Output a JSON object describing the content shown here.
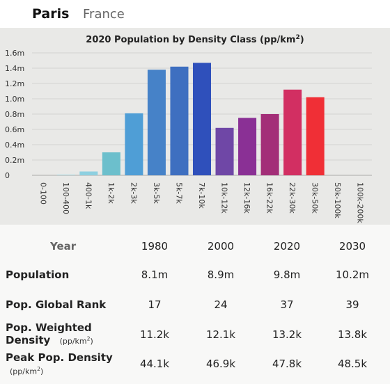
{
  "header": {
    "city": "Paris",
    "country": "France"
  },
  "chart_data": {
    "type": "bar",
    "title": "2020 Population by Density Class (pp/km",
    "title_sup": "2",
    "title_end": ")",
    "categories": [
      "0-100",
      "100-400",
      "400-1k",
      "1k-2k",
      "2k-3k",
      "3k-5k",
      "5k-7k",
      "7k-10k",
      "10k-12k",
      "12k-16k",
      "16k-22k",
      "22k-30k",
      "30k-50k",
      "50k-100k",
      "100k-200k"
    ],
    "values": [
      0,
      0.008,
      0.05,
      0.3,
      0.81,
      1.38,
      1.42,
      1.47,
      0.62,
      0.75,
      0.8,
      1.12,
      1.02,
      0,
      0
    ],
    "colors": [
      "#9fdce0",
      "#98d6df",
      "#8ed0e0",
      "#6cbfcc",
      "#4f9ed6",
      "#4682c8",
      "#3e6fc0",
      "#2f50bb",
      "#6f47a6",
      "#8a3095",
      "#a32e78",
      "#d22f62",
      "#f02f36",
      "#f02f36",
      "#f02f36"
    ],
    "yticks": [
      "0",
      "0.2m",
      "0.4m",
      "0.6m",
      "0.8m",
      "1.0m",
      "1.2m",
      "1.4m",
      "1.6m"
    ],
    "ylim": [
      0,
      1.6
    ],
    "grid": true
  },
  "stats": {
    "year_label": "Year",
    "years": [
      "1980",
      "2000",
      "2020",
      "2030"
    ],
    "rows": [
      {
        "label": "Population",
        "values": [
          "8.1m",
          "8.9m",
          "9.8m",
          "10.2m"
        ]
      },
      {
        "label": "Pop. Global Rank",
        "values": [
          "17",
          "24",
          "37",
          "39"
        ]
      },
      {
        "label": "Pop. Weighted",
        "label2": "Density",
        "unit": "(pp/km",
        "unit_sup": "2",
        "unit_end": ")",
        "values": [
          "11.2k",
          "12.1k",
          "13.2k",
          "13.8k"
        ]
      },
      {
        "label": "Peak Pop. Density",
        "unit": "(pp/km",
        "unit_sup": "2",
        "unit_end": ")",
        "values": [
          "44.1k",
          "46.9k",
          "47.8k",
          "48.5k"
        ]
      }
    ]
  }
}
